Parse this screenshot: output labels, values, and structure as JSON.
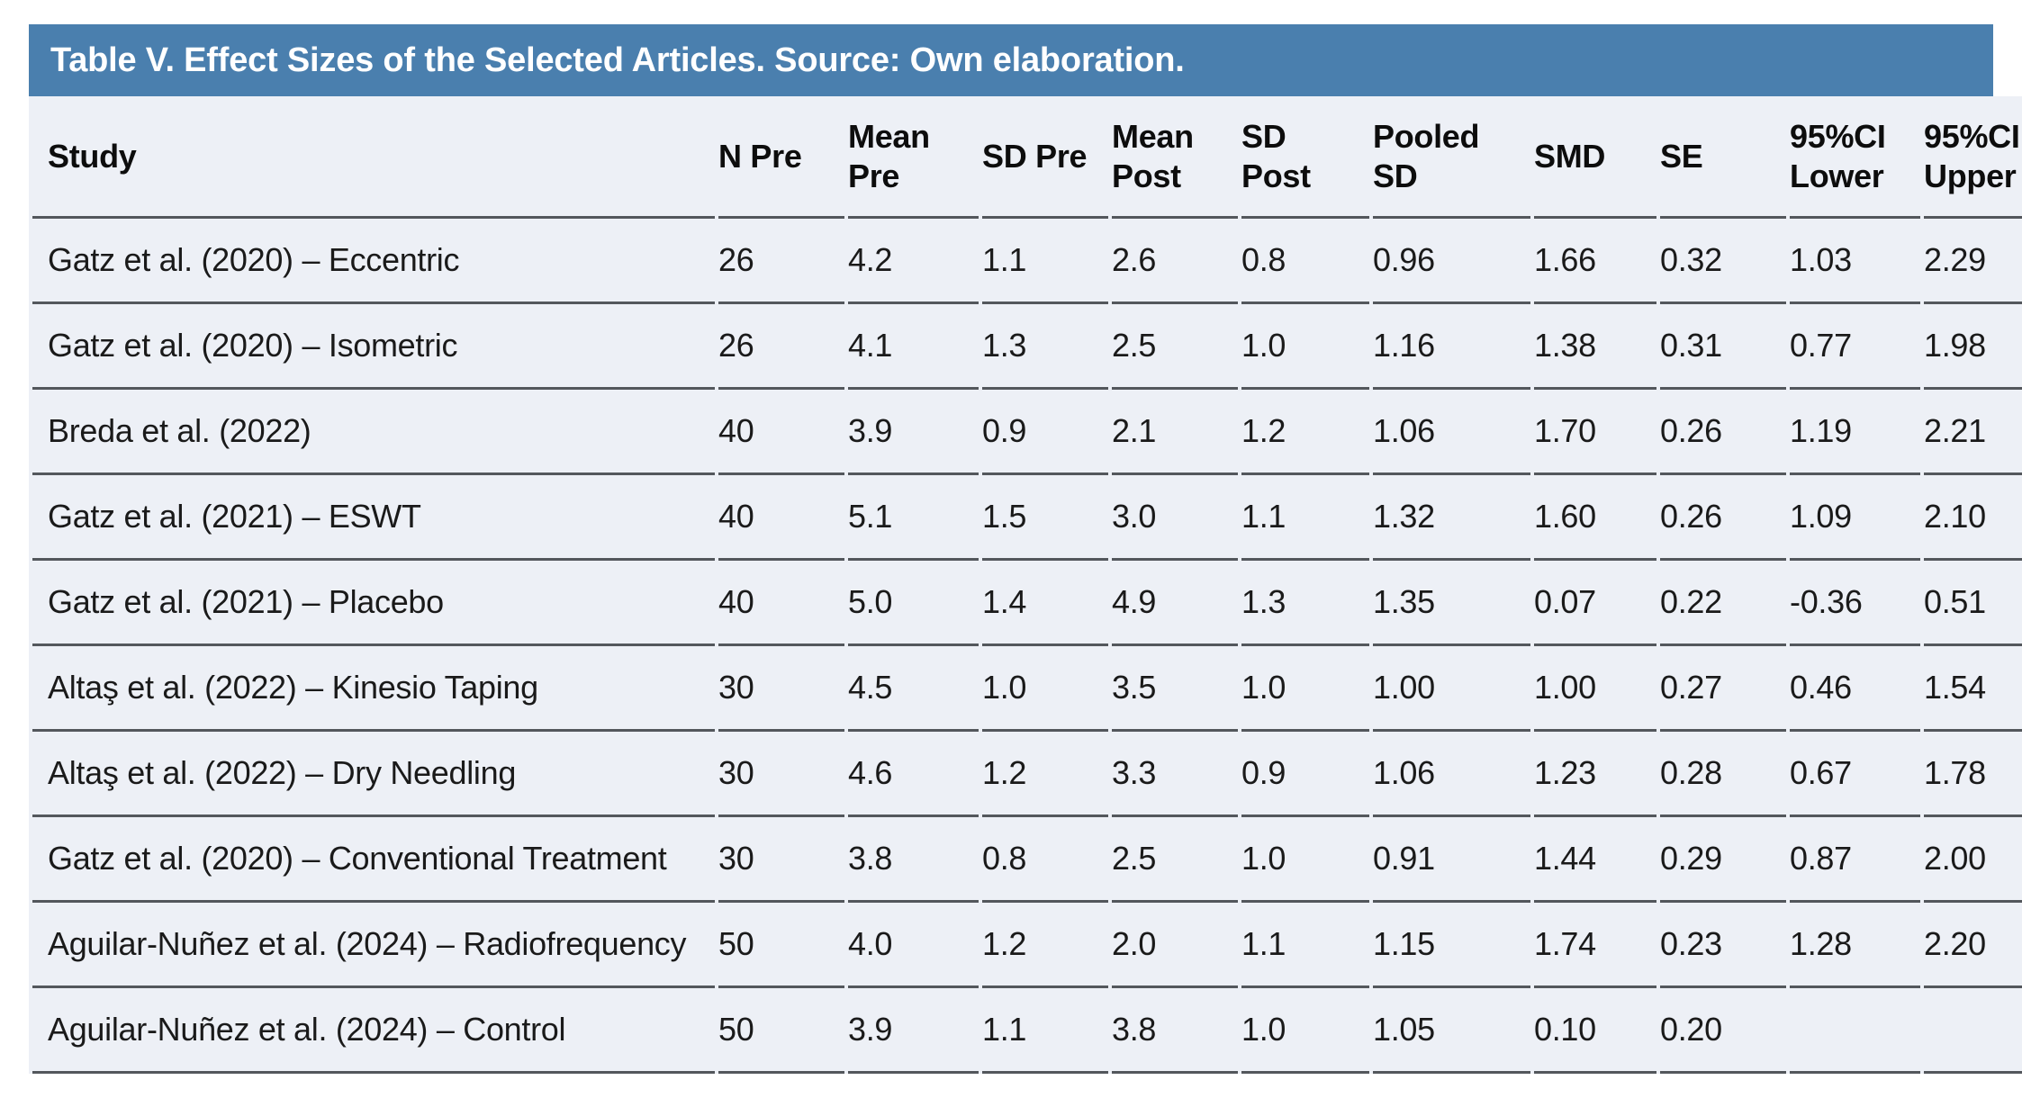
{
  "colors": {
    "title_bar_bg": "#4a7fae",
    "title_text": "#ffffff",
    "table_bg": "#edf0f6",
    "rule": "#53575c",
    "body_text": "#1a1a1a",
    "page_bg": "#ffffff"
  },
  "table": {
    "title": "Table V. Effect Sizes of the Selected Articles. Source: Own elaboration.",
    "columns": [
      {
        "key": "study",
        "label": "Study"
      },
      {
        "key": "n-pre",
        "label": "N Pre"
      },
      {
        "key": "mean-pre",
        "label": "Mean\nPre"
      },
      {
        "key": "sd-pre",
        "label": "SD Pre"
      },
      {
        "key": "mean-post",
        "label": "Mean\nPost"
      },
      {
        "key": "sd-post",
        "label": "SD\nPost"
      },
      {
        "key": "pooled-sd",
        "label": "Pooled\nSD"
      },
      {
        "key": "smd",
        "label": "SMD"
      },
      {
        "key": "se",
        "label": "SE"
      },
      {
        "key": "ci-lower",
        "label": "95%CI\nLower"
      },
      {
        "key": "ci-upper",
        "label": "95%CI\nUpper"
      }
    ],
    "rows": [
      [
        "Gatz et al. (2020) – Eccentric",
        "26",
        "4.2",
        "1.1",
        "2.6",
        "0.8",
        "0.96",
        "1.66",
        "0.32",
        "1.03",
        "2.29"
      ],
      [
        "Gatz et al. (2020) – Isometric",
        "26",
        "4.1",
        "1.3",
        "2.5",
        "1.0",
        "1.16",
        "1.38",
        "0.31",
        "0.77",
        "1.98"
      ],
      [
        "Breda et al. (2022)",
        "40",
        "3.9",
        "0.9",
        "2.1",
        "1.2",
        "1.06",
        "1.70",
        "0.26",
        "1.19",
        "2.21"
      ],
      [
        "Gatz et al. (2021) – ESWT",
        "40",
        "5.1",
        "1.5",
        "3.0",
        "1.1",
        "1.32",
        "1.60",
        "0.26",
        "1.09",
        "2.10"
      ],
      [
        "Gatz et al. (2021) – Placebo",
        "40",
        "5.0",
        "1.4",
        "4.9",
        "1.3",
        "1.35",
        "0.07",
        "0.22",
        "-0.36",
        "0.51"
      ],
      [
        "Altaş et al. (2022) – Kinesio Taping",
        "30",
        "4.5",
        "1.0",
        "3.5",
        "1.0",
        "1.00",
        "1.00",
        "0.27",
        "0.46",
        "1.54"
      ],
      [
        "Altaş et al. (2022) – Dry Needling",
        "30",
        "4.6",
        "1.2",
        "3.3",
        "0.9",
        "1.06",
        "1.23",
        "0.28",
        "0.67",
        "1.78"
      ],
      [
        "Gatz et al. (2020) – Conventional Treatment",
        "30",
        "3.8",
        "0.8",
        "2.5",
        "1.0",
        "0.91",
        "1.44",
        "0.29",
        "0.87",
        "2.00"
      ],
      [
        "Aguilar-Nuñez et al. (2024) – Radiofrequency",
        "50",
        "4.0",
        "1.2",
        "2.0",
        "1.1",
        "1.15",
        "1.74",
        "0.23",
        "1.28",
        "2.20"
      ],
      [
        "Aguilar-Nuñez et al. (2024) – Control",
        "50",
        "3.9",
        "1.1",
        "3.8",
        "1.0",
        "1.05",
        "0.10",
        "0.20",
        "",
        ""
      ]
    ]
  }
}
